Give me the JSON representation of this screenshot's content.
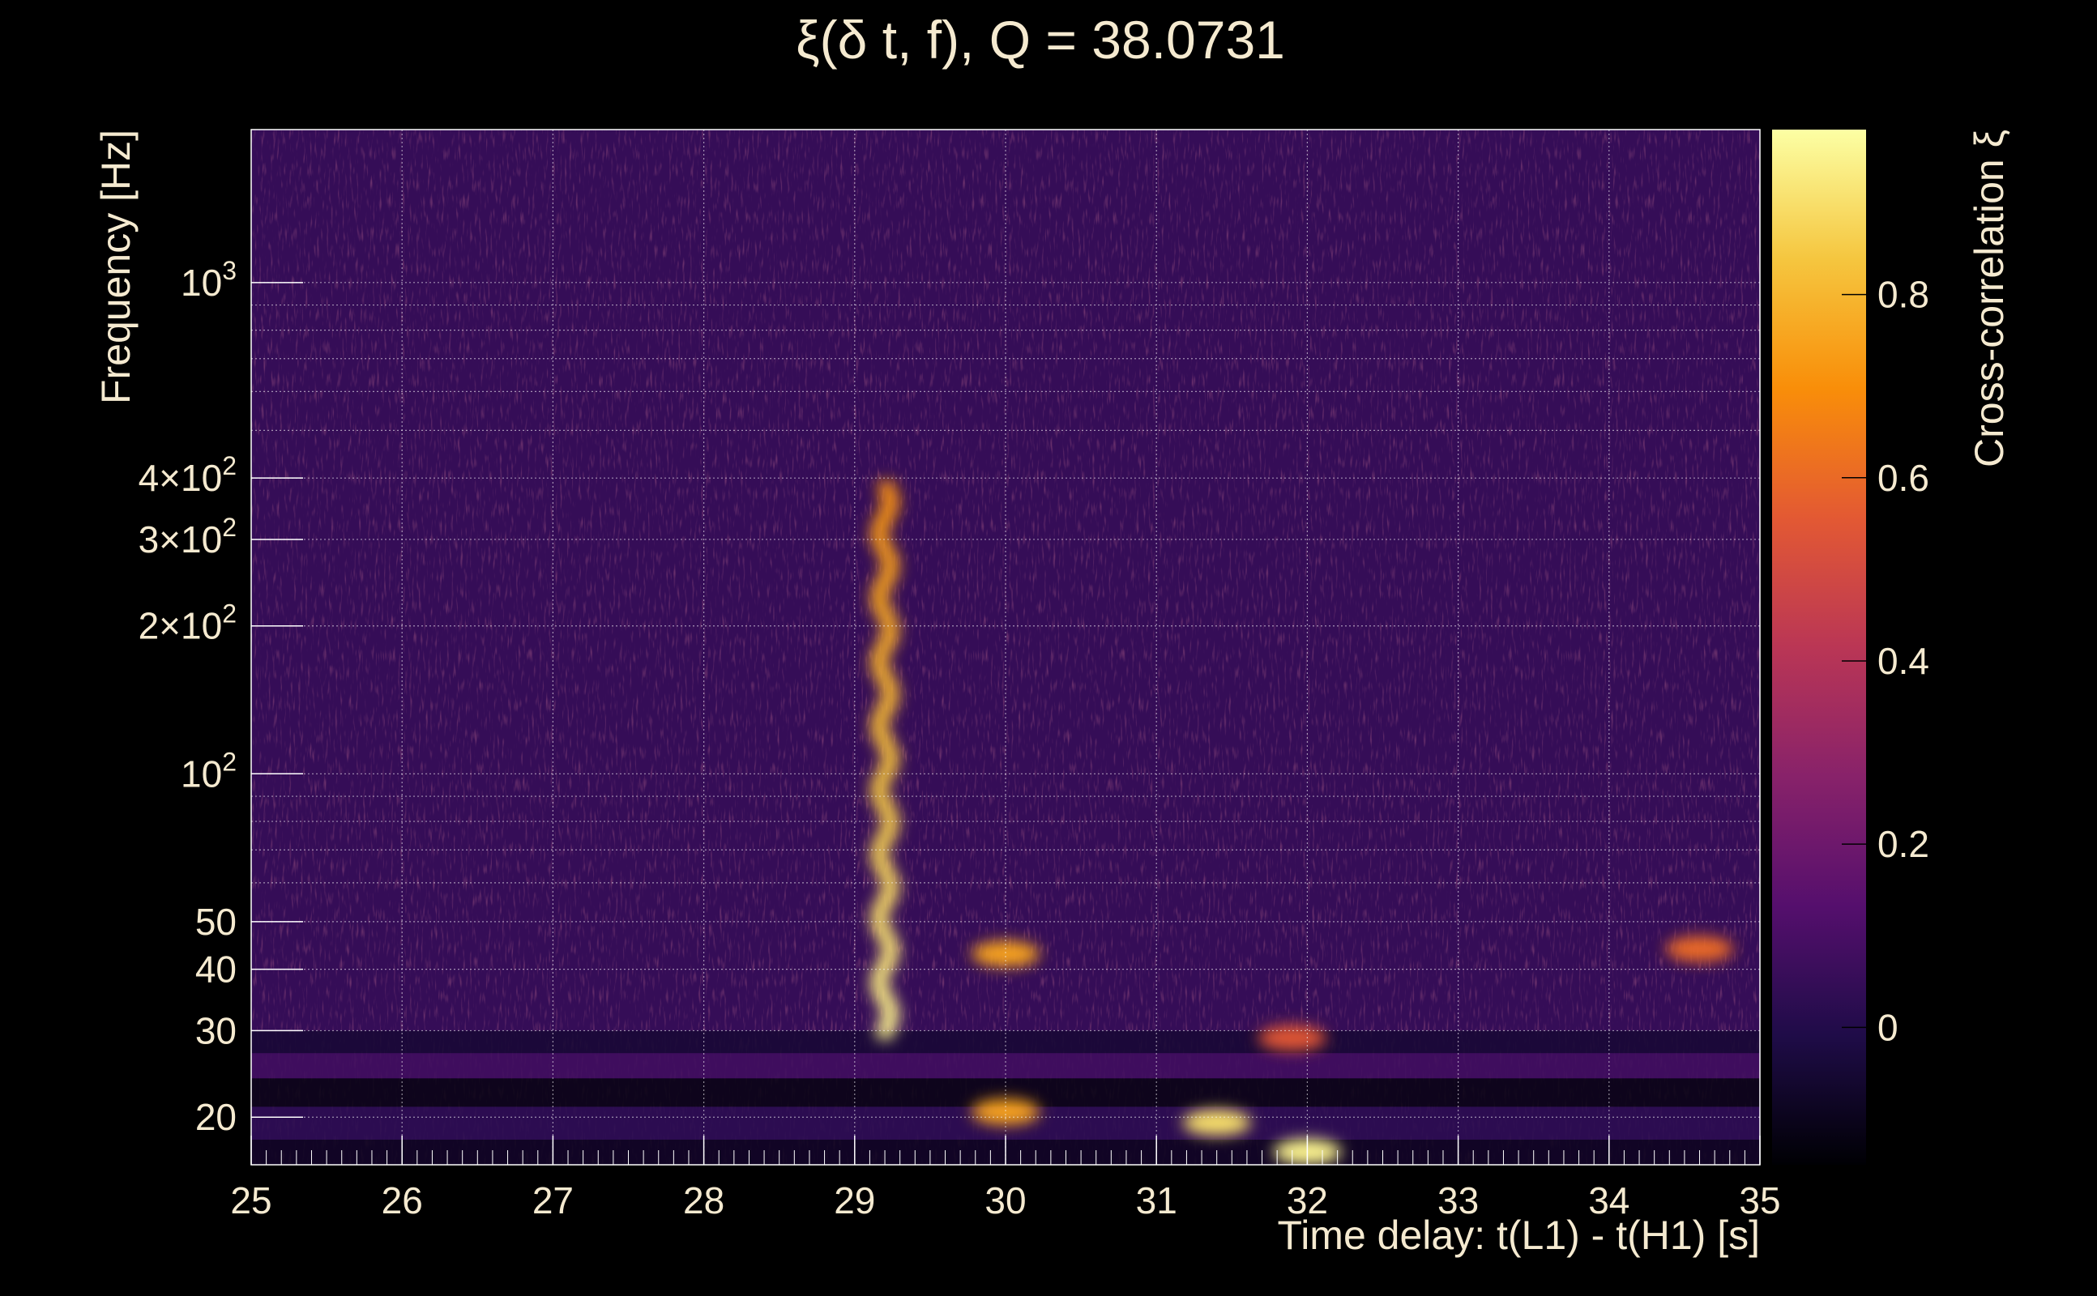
{
  "chart_data": {
    "type": "heatmap",
    "title": "ξ(δ t, f), Q = 38.0731",
    "xlabel": "Time delay: t(L1) - t(H1) [s]",
    "ylabel": "Frequency [Hz]",
    "colorbar_label": "Cross-correlation ξ",
    "xlim": [
      25,
      35
    ],
    "ylim": [
      16,
      2048
    ],
    "y_scale": "log",
    "grid": true,
    "x_ticks": [
      {
        "value": 25,
        "label": "25"
      },
      {
        "value": 26,
        "label": "26"
      },
      {
        "value": 27,
        "label": "27"
      },
      {
        "value": 28,
        "label": "28"
      },
      {
        "value": 29,
        "label": "29"
      },
      {
        "value": 30,
        "label": "30"
      },
      {
        "value": 31,
        "label": "31"
      },
      {
        "value": 32,
        "label": "32"
      },
      {
        "value": 33,
        "label": "33"
      },
      {
        "value": 34,
        "label": "34"
      },
      {
        "value": 35,
        "label": "35"
      }
    ],
    "y_ticks": [
      {
        "value": 20,
        "base": "20",
        "exp": ""
      },
      {
        "value": 30,
        "base": "30",
        "exp": ""
      },
      {
        "value": 40,
        "base": "40",
        "exp": ""
      },
      {
        "value": 50,
        "base": "50",
        "exp": ""
      },
      {
        "value": 100,
        "base": "10",
        "exp": "2"
      },
      {
        "value": 200,
        "base": "2×10",
        "exp": "2"
      },
      {
        "value": 300,
        "base": "3×10",
        "exp": "2"
      },
      {
        "value": 400,
        "base": "4×10",
        "exp": "2"
      },
      {
        "value": 1000,
        "base": "10",
        "exp": "3"
      }
    ],
    "y_minor_grid": [
      60,
      70,
      80,
      90,
      500,
      600,
      700,
      800,
      900
    ],
    "colorbar": {
      "range": [
        -0.15,
        0.98
      ],
      "ticks": [
        {
          "value": 0,
          "label": "0"
        },
        {
          "value": 0.2,
          "label": "0.2"
        },
        {
          "value": 0.4,
          "label": "0.4"
        },
        {
          "value": 0.6,
          "label": "0.6"
        },
        {
          "value": 0.8,
          "label": "0.8"
        }
      ],
      "colormap": "inferno",
      "colors": [
        "#000004",
        "#1f0c48",
        "#550f6d",
        "#88226a",
        "#ba3655",
        "#e35933",
        "#f98e09",
        "#f5c63f",
        "#fcffa4"
      ]
    },
    "features": [
      {
        "name": "chirp track",
        "time_delay": 29.2,
        "freq_range": [
          30,
          380
        ],
        "xi_peak": 0.95
      },
      {
        "name": "low-frequency blob",
        "time_delay": 32.0,
        "freq": 17,
        "xi_peak": 0.95
      },
      {
        "name": "blob",
        "time_delay": 31.4,
        "freq": 19.5,
        "xi_peak": 0.9
      },
      {
        "name": "blob",
        "time_delay": 30.0,
        "freq": 20.5,
        "xi_peak": 0.75
      },
      {
        "name": "blob",
        "time_delay": 30.0,
        "freq": 43,
        "xi_peak": 0.75
      },
      {
        "name": "blob",
        "time_delay": 31.9,
        "freq": 29,
        "xi_peak": 0.55
      },
      {
        "name": "blob",
        "time_delay": 34.6,
        "freq": 44,
        "xi_peak": 0.6
      }
    ],
    "background_xi": 0.05
  }
}
